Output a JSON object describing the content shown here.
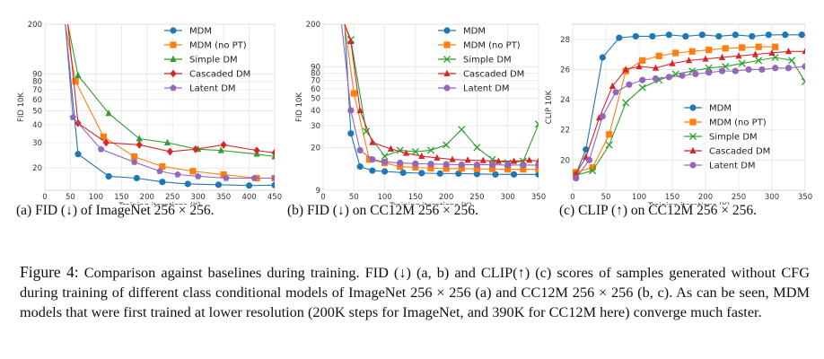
{
  "colors": {
    "MDM": "#1f77b4",
    "MDM (no PT)": "#ff7f0e",
    "Simple DM": "#2ca02c",
    "Cascaded DM": "#d62728",
    "Latent DM": "#9467bd"
  },
  "chart_data": [
    {
      "type": "line",
      "xlabel": "Training iterations (K)",
      "ylabel": "FID 10K",
      "xlim": [
        0,
        450
      ],
      "xticks": [
        0,
        50,
        100,
        150,
        200,
        250,
        300,
        350,
        400,
        450
      ],
      "yscale": "log",
      "ylim": [
        14,
        200
      ],
      "yticks": [
        20,
        30,
        40,
        50,
        60,
        70,
        80,
        90,
        200
      ],
      "grid": true,
      "legend": "top-right",
      "series": [
        {
          "name": "MDM",
          "marker": "circle",
          "x": [
            40,
            65,
            125,
            180,
            230,
            280,
            340,
            400,
            450
          ],
          "y": [
            200,
            25,
            17.5,
            17,
            16,
            15.5,
            15.3,
            15.1,
            15.2
          ]
        },
        {
          "name": "MDM (no PT)",
          "marker": "square",
          "x": [
            40,
            60,
            115,
            175,
            230,
            290,
            350,
            415,
            450
          ],
          "y": [
            200,
            80,
            33,
            24,
            20.5,
            19,
            18,
            17,
            17
          ]
        },
        {
          "name": "Simple DM",
          "marker": "triangle",
          "x": [
            45,
            65,
            125,
            185,
            240,
            300,
            345,
            415,
            450
          ],
          "y": [
            200,
            88,
            48,
            32,
            30,
            27,
            26.5,
            25,
            24
          ]
        },
        {
          "name": "Cascaded DM",
          "marker": "diamond",
          "x": [
            45,
            65,
            120,
            185,
            245,
            295,
            350,
            415,
            450
          ],
          "y": [
            200,
            41,
            30,
            29,
            26,
            27,
            29,
            26.5,
            25.5
          ]
        },
        {
          "name": "Latent DM",
          "marker": "pentagon",
          "x": [
            40,
            55,
            110,
            175,
            225,
            260,
            300,
            355,
            410,
            450
          ],
          "y": [
            200,
            45,
            27,
            22,
            19,
            18,
            17.5,
            17,
            17,
            17
          ]
        }
      ]
    },
    {
      "type": "line",
      "xlabel": "Training iterations (K)",
      "ylabel": "FID 10K",
      "xlim": [
        0,
        350
      ],
      "xticks": [
        0,
        50,
        100,
        150,
        200,
        250,
        300,
        350
      ],
      "yscale": "log",
      "ylim": [
        9,
        200
      ],
      "yticks": [
        9,
        20,
        30,
        40,
        50,
        60,
        70,
        80,
        90,
        200
      ],
      "grid": true,
      "legend": "top-right",
      "series": [
        {
          "name": "MDM",
          "marker": "circle",
          "x": [
            35,
            45,
            60,
            80,
            100,
            130,
            160,
            190,
            220,
            250,
            280,
            310,
            350
          ],
          "y": [
            200,
            26,
            14,
            13,
            12.8,
            12.5,
            12.4,
            12.3,
            12.3,
            12.2,
            12.1,
            12.1,
            12.1
          ]
        },
        {
          "name": "MDM (no PT)",
          "marker": "square",
          "x": [
            35,
            50,
            75,
            100,
            125,
            150,
            175,
            200,
            225,
            250,
            275,
            300,
            325,
            350
          ],
          "y": [
            200,
            55,
            16,
            15,
            14,
            13.8,
            13.6,
            13.5,
            13.5,
            13.4,
            13.4,
            13.3,
            13.3,
            13.3
          ]
        },
        {
          "name": "Simple DM",
          "marker": "x",
          "x": [
            35,
            45,
            70,
            100,
            125,
            150,
            175,
            200,
            225,
            250,
            275,
            300,
            325,
            350
          ],
          "y": [
            200,
            150,
            27,
            17,
            19,
            18.5,
            19,
            21,
            28,
            20,
            16,
            15,
            15.5,
            31
          ]
        },
        {
          "name": "Cascaded DM",
          "marker": "triangle",
          "x": [
            35,
            45,
            60,
            80,
            110,
            135,
            160,
            185,
            210,
            235,
            260,
            285,
            310,
            335,
            350
          ],
          "y": [
            200,
            145,
            40,
            22,
            19.5,
            18,
            17,
            16.5,
            16,
            15.8,
            15.7,
            15.5,
            15.5,
            15.8,
            15.5
          ]
        },
        {
          "name": "Latent DM",
          "marker": "circle",
          "x": [
            30,
            45,
            60,
            80,
            100,
            125,
            150,
            175,
            200,
            225,
            250,
            275,
            300,
            325,
            350
          ],
          "y": [
            200,
            40,
            19,
            16,
            15.3,
            15,
            14.8,
            14.7,
            14.6,
            14.5,
            14.5,
            14.5,
            14.4,
            14.4,
            14.4
          ]
        }
      ]
    },
    {
      "type": "line",
      "xlabel": "Training iterations (K)",
      "ylabel": "CLIP 10K",
      "xlim": [
        0,
        350
      ],
      "xticks": [
        0,
        50,
        100,
        150,
        200,
        250,
        300,
        350
      ],
      "ylim": [
        18,
        29
      ],
      "yticks": [
        20,
        22,
        24,
        26,
        28
      ],
      "grid": true,
      "legend": "bottom-right",
      "series": [
        {
          "name": "MDM",
          "marker": "circle",
          "x": [
            5,
            20,
            45,
            70,
            95,
            120,
            145,
            170,
            195,
            220,
            245,
            270,
            295,
            320,
            345
          ],
          "y": [
            19.1,
            20.7,
            26.8,
            28.1,
            28.2,
            28.2,
            28.3,
            28.2,
            28.3,
            28.2,
            28.3,
            28.2,
            28.3,
            28.3,
            28.3
          ]
        },
        {
          "name": "MDM (no PT)",
          "marker": "square",
          "x": [
            5,
            30,
            55,
            80,
            105,
            130,
            155,
            180,
            205,
            230,
            255,
            280,
            305
          ],
          "y": [
            19.2,
            19.5,
            21.7,
            25.9,
            26.6,
            26.9,
            27.1,
            27.2,
            27.3,
            27.4,
            27.45,
            27.5,
            27.5
          ]
        },
        {
          "name": "Simple DM",
          "marker": "x",
          "x": [
            5,
            30,
            55,
            80,
            105,
            130,
            155,
            180,
            205,
            230,
            255,
            280,
            305,
            330,
            350
          ],
          "y": [
            19.0,
            19.3,
            21.0,
            23.8,
            24.8,
            25.3,
            25.7,
            25.9,
            26.1,
            26.2,
            26.4,
            26.6,
            26.8,
            26.6,
            25.2
          ]
        },
        {
          "name": "Cascaded DM",
          "marker": "triangle",
          "x": [
            5,
            20,
            40,
            60,
            80,
            100,
            125,
            150,
            175,
            200,
            225,
            250,
            275,
            300,
            325,
            350
          ],
          "y": [
            19.1,
            20.2,
            22.8,
            24.9,
            26.0,
            26.2,
            26.1,
            26.4,
            26.6,
            26.7,
            26.8,
            26.9,
            27.0,
            27.1,
            27.2,
            27.2
          ]
        },
        {
          "name": "Latent DM",
          "marker": "circle",
          "x": [
            5,
            25,
            45,
            65,
            85,
            105,
            125,
            145,
            165,
            185,
            205,
            225,
            245,
            265,
            285,
            305,
            325,
            350
          ],
          "y": [
            18.8,
            20.0,
            22.9,
            24.5,
            25.0,
            25.3,
            25.4,
            25.5,
            25.6,
            25.7,
            25.8,
            25.9,
            25.9,
            26.0,
            26.0,
            26.1,
            26.1,
            26.2
          ]
        }
      ]
    }
  ],
  "subcaptions": {
    "a": "(a) FID (↓) of ImageNet 256 × 256.",
    "b": "(b) FID (↓) on CC12M 256 × 256.",
    "c": "(c) CLIP (↑) on CC12M 256 × 256."
  },
  "caption": {
    "label": "Figure 4:",
    "text": "Comparison against baselines during training. FID (↓) (a, b) and CLIP(↑) (c) scores of samples generated without CFG during training of different class conditional models of ImageNet 256 × 256 (a) and CC12M 256 × 256 (b, c). As can be seen, MDM models that were first trained at lower resolution (200K steps for ImageNet, and 390K for CC12M here) converge much faster."
  }
}
